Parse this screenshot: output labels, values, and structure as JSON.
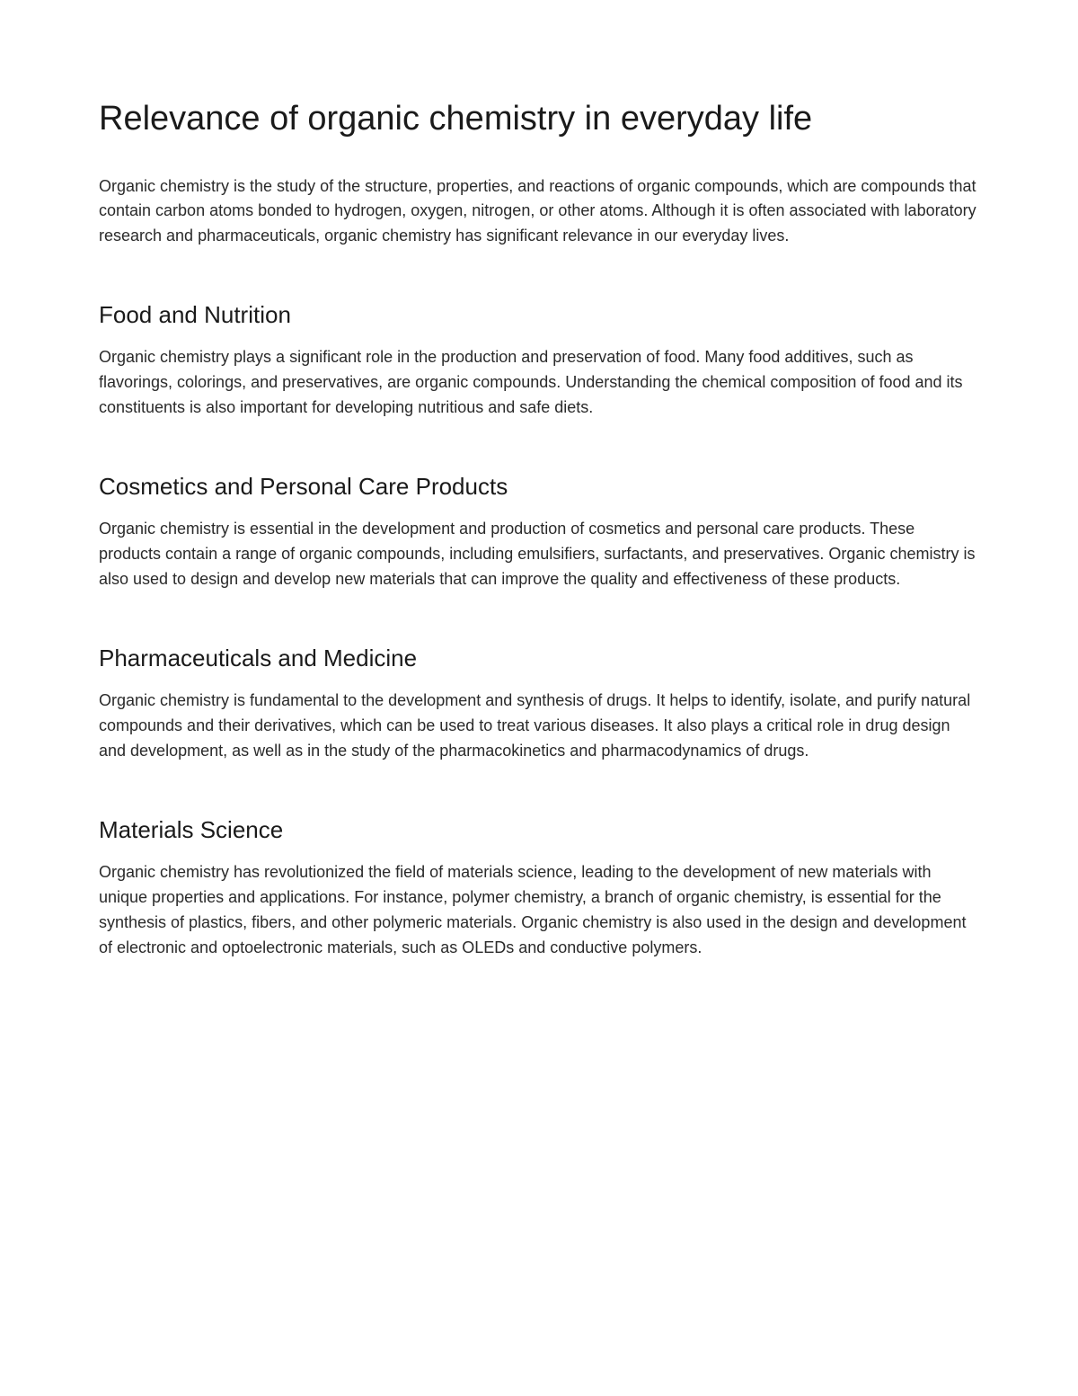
{
  "title": "Relevance of organic chemistry in everyday life",
  "intro": "Organic chemistry is the study of the structure, properties, and reactions of organic compounds, which are compounds that contain carbon atoms bonded to hydrogen, oxygen, nitrogen, or other atoms. Although it is often associated with laboratory research and pharmaceuticals, organic chemistry has significant relevance in our everyday lives.",
  "sections": [
    {
      "heading": "Food and Nutrition",
      "body": "Organic chemistry plays a significant role in the production and preservation of food. Many food additives, such as flavorings, colorings, and preservatives, are organic compounds. Understanding the chemical composition of food and its constituents is also important for developing nutritious and safe diets."
    },
    {
      "heading": "Cosmetics and Personal Care Products",
      "body": "Organic chemistry is essential in the development and production of cosmetics and personal care products. These products contain a range of organic compounds, including emulsifiers, surfactants, and preservatives. Organic chemistry is also used to design and develop new materials that can improve the quality and effectiveness of these products."
    },
    {
      "heading": "Pharmaceuticals and Medicine",
      "body": "Organic chemistry is fundamental to the development and synthesis of drugs. It helps to identify, isolate, and purify natural compounds and their derivatives, which can be used to treat various diseases. It also plays a critical role in drug design and development, as well as in the study of the pharmacokinetics and pharmacodynamics of drugs."
    },
    {
      "heading": "Materials Science",
      "body": "Organic chemistry has revolutionized the field of materials science, leading to the development of new materials with unique properties and applications. For instance, polymer chemistry, a branch of organic chemistry, is essential for the synthesis of plastics, fibers, and other polymeric materials. Organic chemistry is also used in the design and development of electronic and optoelectronic materials, such as OLEDs and conductive polymers."
    }
  ]
}
